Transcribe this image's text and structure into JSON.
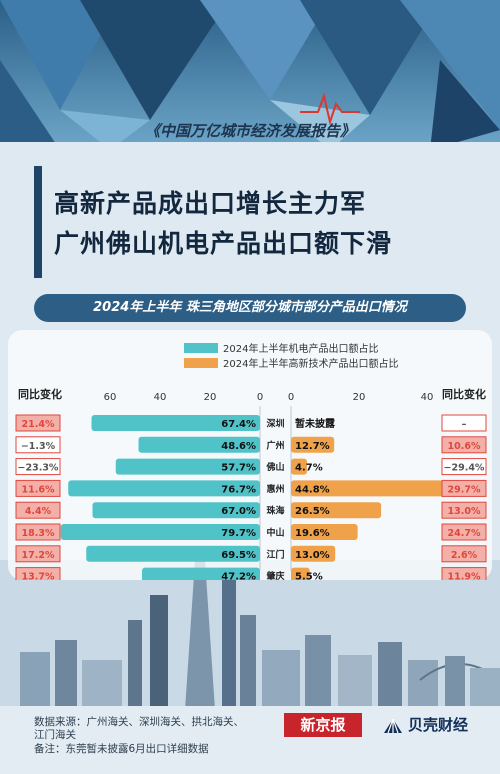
{
  "header": {
    "report": "《中国万亿城市经济发展报告》",
    "title_line1": "高新产品成出口增长主力军",
    "title_line2": "广州佛山机电产品出口额下滑",
    "banner": "2024年上半年 珠三角地区部分城市部分产品出口情况"
  },
  "chart_data": {
    "type": "bar",
    "categories": [
      "深圳",
      "广州",
      "佛山",
      "惠州",
      "珠海",
      "中山",
      "江门",
      "肇庆"
    ],
    "series": [
      {
        "name": "2024年上半年机电产品出口额占比",
        "values": [
          67.4,
          48.6,
          57.7,
          76.7,
          67.0,
          79.7,
          69.5,
          47.2
        ],
        "labels": [
          "67.4%",
          "48.6%",
          "57.7%",
          "76.7%",
          "67.0%",
          "79.7%",
          "69.5%",
          "47.2%"
        ],
        "yoy": [
          "21.4%",
          "−1.3%",
          "−23.3%",
          "11.6%",
          "4.4%",
          "18.3%",
          "17.2%",
          "13.7%"
        ],
        "color": "#4fc3c8"
      },
      {
        "name": "2024年上半年高新技术产品出口额占比",
        "values": [
          null,
          12.7,
          4.7,
          44.8,
          26.5,
          19.6,
          13.0,
          5.5
        ],
        "labels": [
          "暂未披露",
          "12.7%",
          "4.7%",
          "44.8%",
          "26.5%",
          "19.6%",
          "13.0%",
          "5.5%"
        ],
        "yoy": [
          "–",
          "10.6%",
          "−29.4%",
          "29.7%",
          "13.0%",
          "24.7%",
          "2.6%",
          "11.9%"
        ],
        "color": "#f0a24a"
      }
    ],
    "left_axis": {
      "ticks": [
        "60",
        "40",
        "20",
        "0"
      ],
      "range": [
        0,
        80
      ]
    },
    "right_axis": {
      "ticks": [
        "0",
        "20",
        "40"
      ],
      "range": [
        0,
        45
      ]
    },
    "yoy_header": "同比变化",
    "colors": {
      "positive": "#e0463c",
      "negative": "#555555",
      "box_fill": "#f2b0a8"
    }
  },
  "footer": {
    "source_line1": "数据来源：广州海关、深圳海关、拱北海关、",
    "source_line2": "江门海关",
    "note": "备注：东莞暂未披露6月出口详细数据",
    "logo_xjb": "新京报",
    "logo_bk": "贝壳财经"
  }
}
